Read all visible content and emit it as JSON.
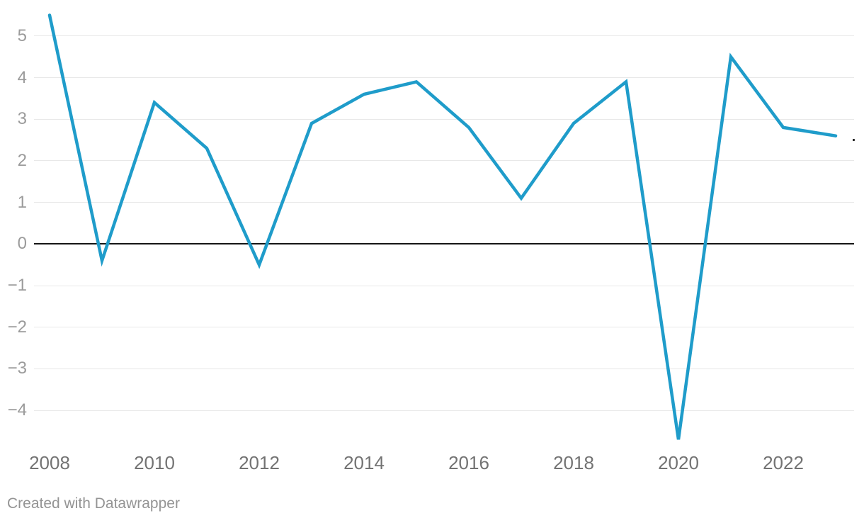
{
  "chart": {
    "title": "",
    "footer": "Created with Datawrapper"
  },
  "colors": {
    "line": "#1f9cca",
    "grid": "#e8e8e8",
    "zero_line": "#161616",
    "y_tick_text": "#9b9b9b",
    "x_tick_text": "#737373",
    "footer_text": "#949494",
    "background": "#ffffff"
  },
  "chart_data": {
    "type": "line",
    "title": "",
    "xlabel": "",
    "ylabel": "",
    "legend": "none",
    "grid": "horizontal-only",
    "zero_baseline": true,
    "x": [
      2008,
      2009,
      2010,
      2011,
      2012,
      2013,
      2014,
      2015,
      2016,
      2017,
      2018,
      2019,
      2020,
      2021,
      2022,
      2023
    ],
    "values": [
      5.5,
      -0.4,
      3.4,
      2.3,
      -0.5,
      2.9,
      3.6,
      3.9,
      2.8,
      1.1,
      2.9,
      3.9,
      -4.7,
      4.5,
      2.8,
      2.6
    ],
    "series": [
      {
        "name": "",
        "values": [
          5.5,
          -0.4,
          3.4,
          2.3,
          -0.5,
          2.9,
          3.6,
          3.9,
          2.8,
          1.1,
          2.9,
          3.9,
          -4.7,
          4.5,
          2.8,
          2.6
        ]
      }
    ],
    "yticks": [
      {
        "label": "5",
        "value": 5
      },
      {
        "label": "4",
        "value": 4
      },
      {
        "label": "3",
        "value": 3
      },
      {
        "label": "2",
        "value": 2
      },
      {
        "label": "1",
        "value": 1
      },
      {
        "label": "0",
        "value": 0
      },
      {
        "label": "−1",
        "value": -1
      },
      {
        "label": "−2",
        "value": -2
      },
      {
        "label": "−3",
        "value": -3
      },
      {
        "label": "−4",
        "value": -4
      }
    ],
    "xticks": [
      {
        "label": "2008",
        "value": 2008
      },
      {
        "label": "2010",
        "value": 2010
      },
      {
        "label": "2012",
        "value": 2012
      },
      {
        "label": "2014",
        "value": 2014
      },
      {
        "label": "2016",
        "value": 2016
      },
      {
        "label": "2018",
        "value": 2018
      },
      {
        "label": "2020",
        "value": 2020
      },
      {
        "label": "2022",
        "value": 2022
      }
    ],
    "xlim": [
      2008,
      2023
    ],
    "ylim": [
      -4.9,
      5.6
    ],
    "line_color": "#1f9cca",
    "line_width": 4.5
  }
}
